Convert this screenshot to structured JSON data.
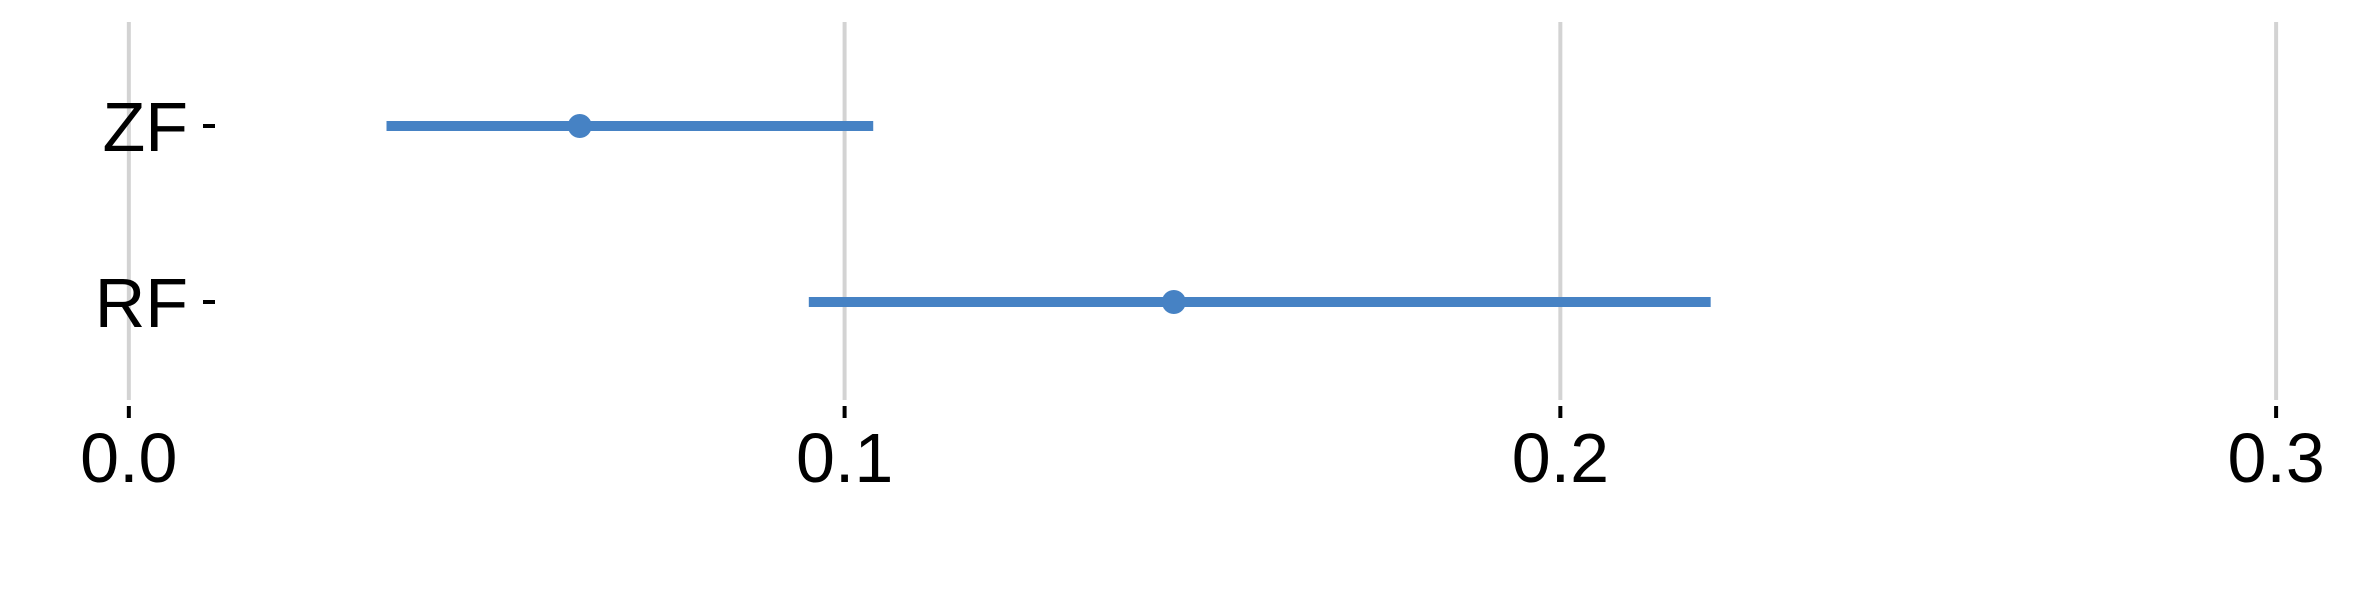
{
  "chart_data": {
    "type": "errorbar",
    "orientation": "horizontal",
    "title": "",
    "xlabel": "",
    "ylabel": "",
    "xlim": [
      -0.018,
      0.312
    ],
    "xticks": [
      0.0,
      0.1,
      0.2,
      0.3
    ],
    "xtick_labels": [
      "0.0",
      "0.1",
      "0.2",
      "0.3"
    ],
    "categories": [
      "ZF",
      "RF"
    ],
    "series": [
      {
        "points": [
          {
            "category": "ZF",
            "estimate": 0.063,
            "lower": 0.036,
            "upper": 0.104
          },
          {
            "category": "RF",
            "estimate": 0.146,
            "lower": 0.095,
            "upper": 0.221
          }
        ]
      }
    ],
    "grid": "vertical-major",
    "colors": {
      "series": "#4682c4",
      "grid": "#d3d3d3",
      "text": "#000000"
    }
  }
}
